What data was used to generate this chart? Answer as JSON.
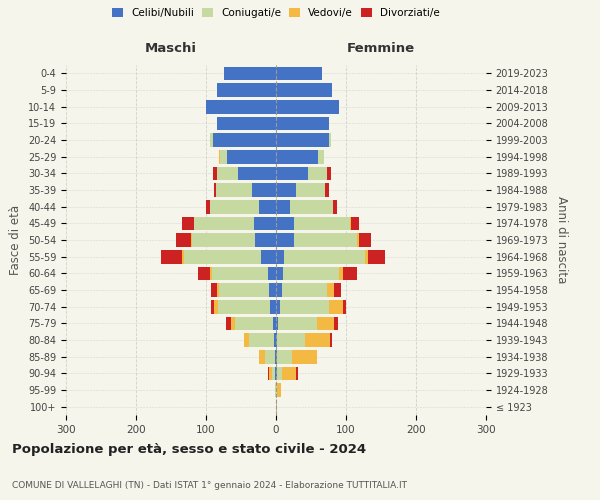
{
  "age_groups": [
    "100+",
    "95-99",
    "90-94",
    "85-89",
    "80-84",
    "75-79",
    "70-74",
    "65-69",
    "60-64",
    "55-59",
    "50-54",
    "45-49",
    "40-44",
    "35-39",
    "30-34",
    "25-29",
    "20-24",
    "15-19",
    "10-14",
    "5-9",
    "0-4"
  ],
  "birth_years": [
    "≤ 1923",
    "1924-1928",
    "1929-1933",
    "1934-1938",
    "1939-1943",
    "1944-1948",
    "1949-1953",
    "1954-1958",
    "1959-1963",
    "1964-1968",
    "1969-1973",
    "1974-1978",
    "1979-1983",
    "1984-1988",
    "1989-1993",
    "1994-1998",
    "1999-2003",
    "2004-2008",
    "2009-2013",
    "2014-2018",
    "2019-2023"
  ],
  "colors": {
    "celibi": "#4472c4",
    "coniugati": "#c5d9a0",
    "vedovi": "#f4b942",
    "divorziati": "#cc2222"
  },
  "maschi": {
    "celibi": [
      0,
      0,
      1,
      1,
      3,
      4,
      8,
      10,
      12,
      22,
      30,
      32,
      25,
      34,
      55,
      70,
      90,
      85,
      100,
      85,
      75
    ],
    "coniugati": [
      0,
      1,
      5,
      15,
      35,
      55,
      75,
      72,
      80,
      110,
      90,
      85,
      70,
      52,
      30,
      10,
      5,
      0,
      0,
      0,
      0
    ],
    "vedovi": [
      0,
      1,
      4,
      8,
      8,
      5,
      5,
      3,
      2,
      2,
      1,
      0,
      0,
      0,
      0,
      2,
      0,
      0,
      0,
      0,
      0
    ],
    "divorziati": [
      0,
      0,
      2,
      0,
      0,
      8,
      5,
      8,
      18,
      30,
      22,
      18,
      5,
      2,
      5,
      0,
      0,
      0,
      0,
      0,
      0
    ]
  },
  "femmine": {
    "celibi": [
      0,
      0,
      1,
      1,
      2,
      3,
      5,
      8,
      10,
      12,
      25,
      25,
      20,
      28,
      45,
      60,
      75,
      75,
      90,
      80,
      65
    ],
    "coniugati": [
      0,
      2,
      8,
      22,
      40,
      55,
      70,
      65,
      80,
      115,
      90,
      80,
      62,
      42,
      28,
      8,
      4,
      0,
      0,
      0,
      0
    ],
    "vedovi": [
      1,
      5,
      20,
      35,
      35,
      25,
      20,
      10,
      6,
      4,
      3,
      2,
      0,
      0,
      0,
      0,
      0,
      0,
      0,
      0,
      0
    ],
    "divorziati": [
      0,
      0,
      3,
      1,
      3,
      5,
      5,
      10,
      20,
      25,
      18,
      12,
      5,
      5,
      5,
      0,
      0,
      0,
      0,
      0,
      0
    ]
  },
  "xlim": 300,
  "title": "Popolazione per età, sesso e stato civile - 2024",
  "subtitle": "COMUNE DI VALLELAGHI (TN) - Dati ISTAT 1° gennaio 2024 - Elaborazione TUTTITALIA.IT",
  "ylabel_left": "Fasce di età",
  "ylabel_right": "Anni di nascita",
  "xlabel_left": "Maschi",
  "xlabel_right": "Femmine",
  "bg_color": "#f5f5eb",
  "grid_color": "#cccccc",
  "bar_height": 0.82
}
